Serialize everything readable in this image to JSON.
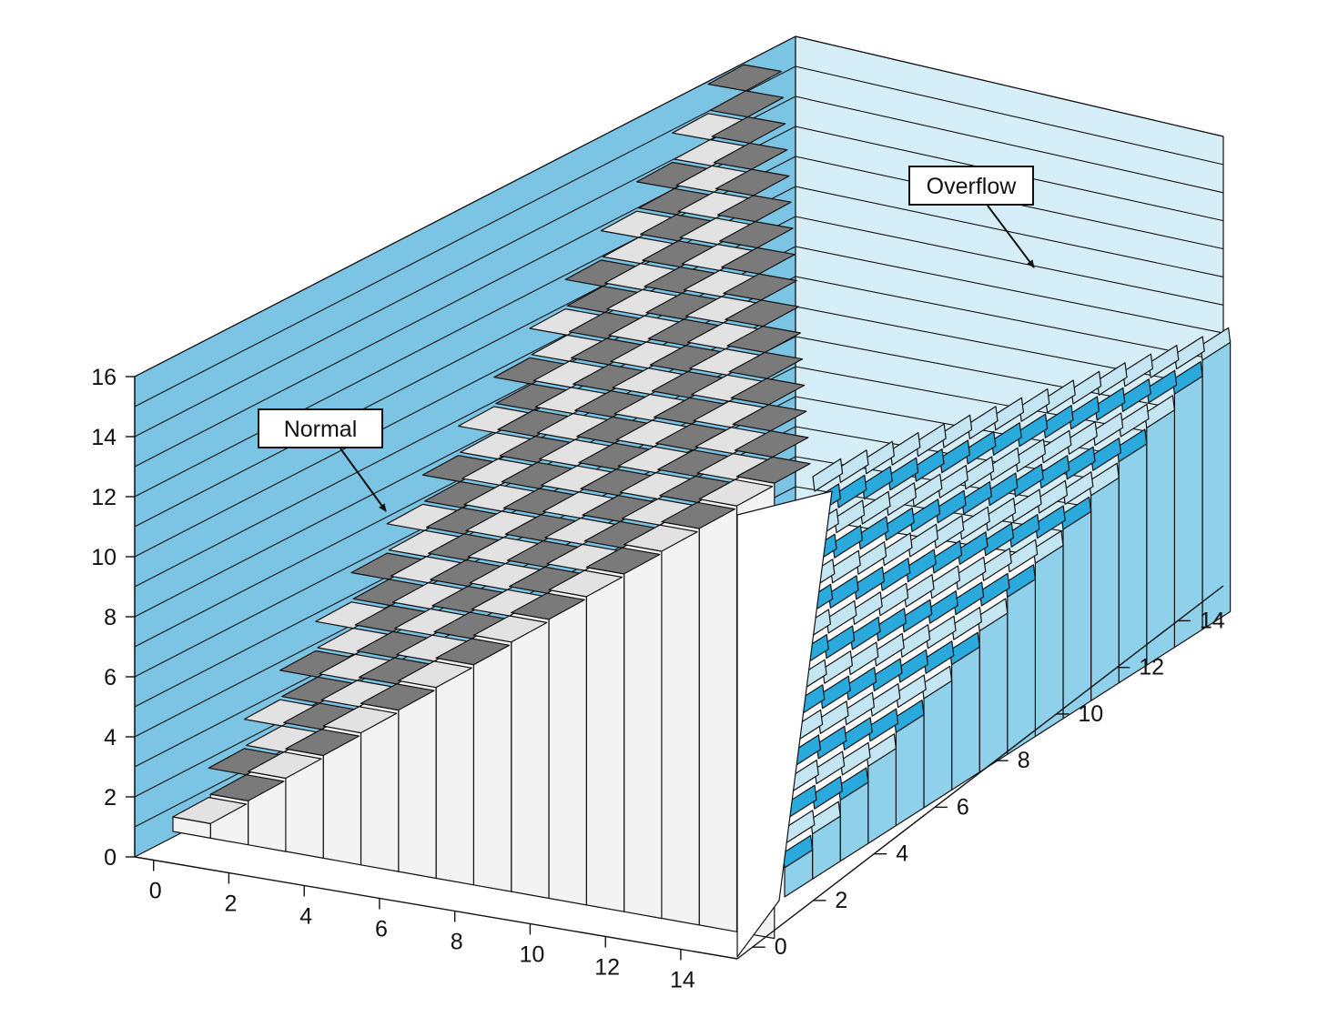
{
  "chart_data": {
    "type": "bar3d",
    "title": "",
    "x_axis": {
      "label": "",
      "ticks": [
        0,
        2,
        4,
        6,
        8,
        10,
        12,
        14
      ],
      "range": [
        0,
        15
      ]
    },
    "y_axis": {
      "label": "",
      "ticks": [
        0,
        2,
        4,
        6,
        8,
        10,
        12,
        14
      ],
      "range": [
        0,
        15
      ]
    },
    "z_axis": {
      "label": "",
      "ticks": [
        0,
        2,
        4,
        6,
        8,
        10,
        12,
        14,
        16
      ],
      "range": [
        0,
        16
      ]
    },
    "grid": true,
    "value_rule": "height = x + y",
    "regions": [
      {
        "name": "Normal",
        "condition": "x + y <= 15",
        "color_top": "#e6e6e6",
        "color_side": "#bdbdbd",
        "color_front": "#f3f3f3"
      },
      {
        "name": "Overflow",
        "condition": "x + y > 15",
        "color_top": "#29a9dc",
        "color_side": "#8fd0ea",
        "color_front": "#c4e6f3"
      }
    ],
    "colors": {
      "left_wall": "#7cc4e4",
      "back_wall": "#d6eef8",
      "edge": "#111111"
    },
    "annotations": [
      {
        "text": "Normal",
        "target": "Normal"
      },
      {
        "text": "Overflow",
        "target": "Overflow"
      }
    ]
  }
}
